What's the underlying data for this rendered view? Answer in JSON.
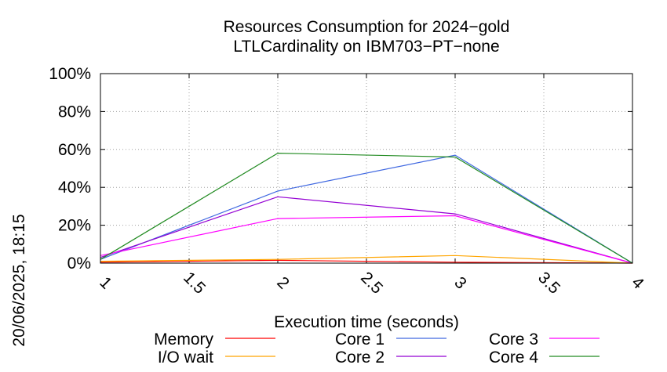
{
  "chart_data": {
    "type": "line",
    "title": [
      "Resources Consumption for 2024−gold",
      "LTLCardinality on IBM703−PT−none"
    ],
    "xlabel": "Execution time (seconds)",
    "ylabel": "",
    "side_label": "20/06/2025, 18:15",
    "xlim": [
      1,
      4
    ],
    "ylim": [
      0,
      100
    ],
    "grid": true,
    "legend_position": "bottom",
    "x_ticks": [
      {
        "value": 1,
        "label": "1"
      },
      {
        "value": 1.5,
        "label": "1.5"
      },
      {
        "value": 2,
        "label": "2"
      },
      {
        "value": 2.5,
        "label": "2.5"
      },
      {
        "value": 3,
        "label": "3"
      },
      {
        "value": 3.5,
        "label": "3.5"
      },
      {
        "value": 4,
        "label": "4"
      }
    ],
    "y_ticks": [
      {
        "value": 0,
        "label": "0%"
      },
      {
        "value": 20,
        "label": "20%"
      },
      {
        "value": 40,
        "label": "40%"
      },
      {
        "value": 60,
        "label": "60%"
      },
      {
        "value": 80,
        "label": "80%"
      },
      {
        "value": 100,
        "label": "100%"
      }
    ],
    "x": [
      1,
      2,
      3,
      4
    ],
    "series": [
      {
        "name": "Memory",
        "color": "#ff0000",
        "values": [
          0.5,
          1.5,
          0.5,
          0
        ]
      },
      {
        "name": "I/O wait",
        "color": "#ffa500",
        "values": [
          1,
          2,
          4,
          0
        ]
      },
      {
        "name": "Core 1",
        "color": "#4169e1",
        "values": [
          2,
          38,
          57,
          0
        ]
      },
      {
        "name": "Core 2",
        "color": "#9400d3",
        "values": [
          3,
          35,
          26,
          0
        ]
      },
      {
        "name": "Core 3",
        "color": "#ff00ff",
        "values": [
          4,
          23.5,
          25,
          0
        ]
      },
      {
        "name": "Core 4",
        "color": "#228b22",
        "values": [
          2,
          58,
          56,
          0
        ]
      }
    ]
  }
}
